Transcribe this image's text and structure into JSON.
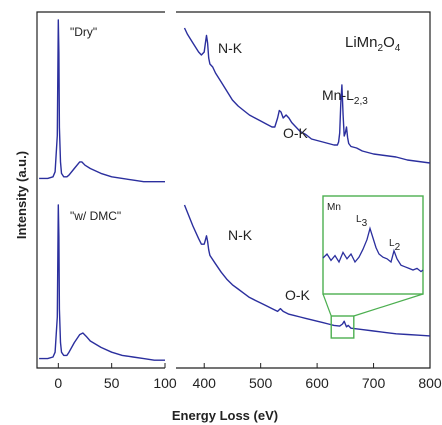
{
  "chart_data": {
    "type": "line",
    "title": "",
    "compound": {
      "prefix": "LiMn",
      "sub1": "2",
      "mid": "O",
      "sub2": "4"
    },
    "xlabel": "Energy Loss (eV)",
    "ylabel": "Intensity (a.u.)",
    "panels": [
      {
        "name": "low-loss",
        "xlim": [
          -20,
          100
        ],
        "xticks": [
          "0",
          "50",
          "100"
        ],
        "xtick_values": [
          0,
          50,
          100
        ]
      },
      {
        "name": "core-loss",
        "xlim": [
          350,
          800
        ],
        "xticks": [
          "400",
          "500",
          "600",
          "700",
          "800"
        ],
        "xtick_values": [
          400,
          500,
          600,
          700,
          800
        ]
      }
    ],
    "series": [
      {
        "name": "\"Dry\"",
        "panel": "low-loss",
        "x": [
          -18,
          -10,
          -5,
          -3,
          -1,
          0,
          0.5,
          1,
          2,
          3,
          5,
          8,
          10,
          15,
          20,
          22,
          25,
          30,
          40,
          50,
          60,
          70,
          80,
          90,
          100
        ],
        "y": [
          0.04,
          0.04,
          0.05,
          0.08,
          0.3,
          1.0,
          0.8,
          0.35,
          0.14,
          0.07,
          0.05,
          0.05,
          0.06,
          0.1,
          0.14,
          0.14,
          0.12,
          0.1,
          0.07,
          0.05,
          0.04,
          0.03,
          0.02,
          0.02,
          0.02
        ]
      },
      {
        "name": "\"Dry\"",
        "panel": "core-loss",
        "x": [
          365,
          370,
          380,
          390,
          395,
          400,
          402,
          404,
          406,
          408,
          410,
          415,
          420,
          430,
          440,
          450,
          460,
          470,
          480,
          490,
          500,
          510,
          520,
          525,
          530,
          533,
          536,
          540,
          545,
          550,
          555,
          560,
          570,
          580,
          590,
          600,
          610,
          620,
          630,
          636,
          638,
          640,
          642,
          644,
          646,
          648,
          650,
          652,
          654,
          656,
          660,
          670,
          680,
          690,
          700,
          720,
          740,
          760,
          780,
          800
        ],
        "y": [
          1.0,
          0.96,
          0.9,
          0.84,
          0.82,
          0.84,
          0.9,
          0.95,
          0.9,
          0.8,
          0.76,
          0.74,
          0.7,
          0.64,
          0.58,
          0.52,
          0.48,
          0.45,
          0.42,
          0.4,
          0.38,
          0.36,
          0.34,
          0.34,
          0.4,
          0.45,
          0.44,
          0.4,
          0.42,
          0.4,
          0.37,
          0.35,
          0.31,
          0.29,
          0.26,
          0.25,
          0.24,
          0.23,
          0.22,
          0.22,
          0.24,
          0.3,
          0.5,
          0.62,
          0.42,
          0.28,
          0.3,
          0.34,
          0.27,
          0.23,
          0.21,
          0.2,
          0.18,
          0.17,
          0.16,
          0.15,
          0.14,
          0.12,
          0.11,
          0.1
        ]
      },
      {
        "name": "\"w/ DMC\"",
        "panel": "low-loss",
        "x": [
          -18,
          -10,
          -5,
          -3,
          -1,
          0,
          0.5,
          1,
          2,
          3,
          5,
          8,
          10,
          15,
          20,
          23,
          26,
          30,
          40,
          50,
          60,
          70,
          80,
          90,
          100
        ],
        "y": [
          0.04,
          0.04,
          0.05,
          0.08,
          0.3,
          1.0,
          0.8,
          0.35,
          0.14,
          0.08,
          0.06,
          0.06,
          0.08,
          0.14,
          0.19,
          0.2,
          0.18,
          0.15,
          0.11,
          0.08,
          0.06,
          0.05,
          0.04,
          0.03,
          0.03
        ]
      },
      {
        "name": "\"w/ DMC\"",
        "panel": "core-loss",
        "x": [
          365,
          370,
          380,
          390,
          395,
          400,
          402,
          404,
          406,
          408,
          410,
          420,
          430,
          440,
          450,
          460,
          470,
          480,
          490,
          500,
          510,
          520,
          530,
          535,
          540,
          550,
          560,
          570,
          580,
          590,
          600,
          610,
          620,
          630,
          640,
          645,
          648,
          650,
          652,
          655,
          660,
          680,
          700,
          720,
          740,
          760,
          780,
          800
        ],
        "y": [
          1.0,
          0.95,
          0.85,
          0.76,
          0.72,
          0.72,
          0.75,
          0.78,
          0.74,
          0.68,
          0.64,
          0.58,
          0.52,
          0.47,
          0.43,
          0.4,
          0.37,
          0.34,
          0.32,
          0.3,
          0.28,
          0.26,
          0.24,
          0.26,
          0.24,
          0.22,
          0.21,
          0.2,
          0.19,
          0.18,
          0.17,
          0.16,
          0.15,
          0.14,
          0.135,
          0.15,
          0.17,
          0.15,
          0.13,
          0.14,
          0.12,
          0.11,
          0.1,
          0.09,
          0.08,
          0.075,
          0.07,
          0.065
        ]
      }
    ],
    "annotations": {
      "dry_peaks": [
        {
          "label": "N-K",
          "x": 400
        },
        {
          "label": "O-K",
          "x": 530
        },
        {
          "label": "Mn-L",
          "sub": "2,3",
          "x": 640
        }
      ],
      "dmc_peaks": [
        {
          "label": "N-K",
          "x": 400
        },
        {
          "label": "O-K",
          "x": 530
        }
      ],
      "inset": {
        "label": "Mn",
        "peaks": [
          {
            "label": "L",
            "sub": "3"
          },
          {
            "label": "L",
            "sub": "2"
          }
        ],
        "zoom_xrange": [
          625,
          665
        ]
      }
    },
    "colors": {
      "line": "#2b2f9e",
      "inset_frame": "#4caf50",
      "axis": "#222222"
    },
    "grid": false,
    "legend": "none"
  }
}
